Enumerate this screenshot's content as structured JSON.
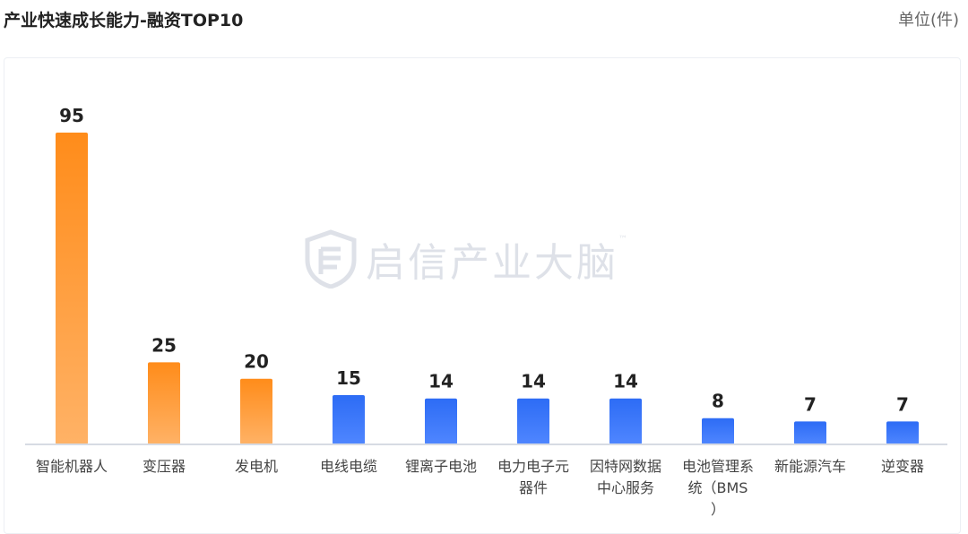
{
  "header": {
    "title": "产业快速成长能力-融资TOP10",
    "unit": "单位(件)"
  },
  "watermark": {
    "text": "启信产业大脑",
    "tm": "™"
  },
  "colors": {
    "orange_top": "#ff8c1a",
    "orange_bottom": "#ffb266",
    "blue_top": "#2d6cf5",
    "blue_bottom": "#4f86ff",
    "axis": "#d7dbe3",
    "label": "#444444",
    "value": "#222222"
  },
  "chart_data": {
    "type": "bar",
    "categories": [
      [
        "智能机器人"
      ],
      [
        "变压器"
      ],
      [
        "发电机"
      ],
      [
        "电线电缆"
      ],
      [
        "锂离子电池"
      ],
      [
        "电力电子元",
        "器件"
      ],
      [
        "因特网数据",
        "中心服务"
      ],
      [
        "电池管理系",
        "统（BMS",
        "）"
      ],
      [
        "新能源汽车"
      ],
      [
        "逆变器"
      ]
    ],
    "values": [
      95,
      25,
      20,
      15,
      14,
      14,
      14,
      8,
      7,
      7
    ],
    "highlight_top": 3,
    "ylim": [
      0,
      95
    ],
    "grid": false,
    "legend": "none"
  }
}
